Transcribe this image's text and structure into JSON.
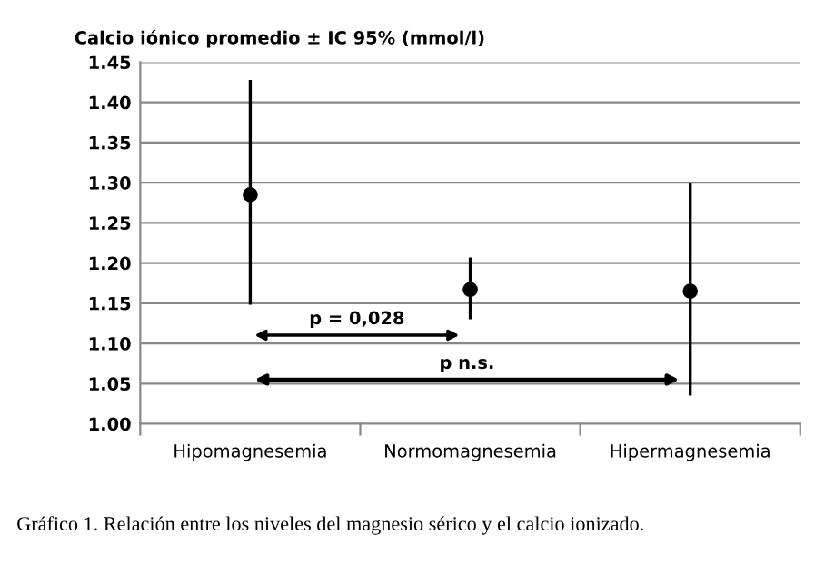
{
  "chart_data": {
    "type": "scatter",
    "ylabel": "Calcio iónico promedio ± IC 95% (mmol/l)",
    "categories": [
      "Hipomagnesemia",
      "Normomagnesemia",
      "Hipermagnesemia"
    ],
    "series": [
      {
        "color": "#000000",
        "values": [
          1.285,
          1.167,
          1.165
        ],
        "errors": [
          [
            1.148,
            1.428
          ],
          [
            1.13,
            1.207
          ],
          [
            1.035,
            1.3
          ]
        ]
      }
    ],
    "ylim": [
      1.0,
      1.45
    ],
    "yticks": [
      {
        "value": 1.0,
        "label": "1.00"
      },
      {
        "value": 1.05,
        "label": "1.05"
      },
      {
        "value": 1.1,
        "label": "1.10"
      },
      {
        "value": 1.15,
        "label": "1.15"
      },
      {
        "value": 1.2,
        "label": "1.20"
      },
      {
        "value": 1.25,
        "label": "1.25"
      },
      {
        "value": 1.3,
        "label": "1.30"
      },
      {
        "value": 1.35,
        "label": "1.35"
      },
      {
        "value": 1.4,
        "label": "1.40"
      },
      {
        "value": 1.45,
        "label": "1.45"
      }
    ],
    "grid": "y",
    "marker": "circle",
    "annotations": [
      "p = 0,028",
      "p n.s.",
      "Gráfico 1. Relación entre los niveles del magnesio sérico y el calcio ionizado."
    ]
  }
}
